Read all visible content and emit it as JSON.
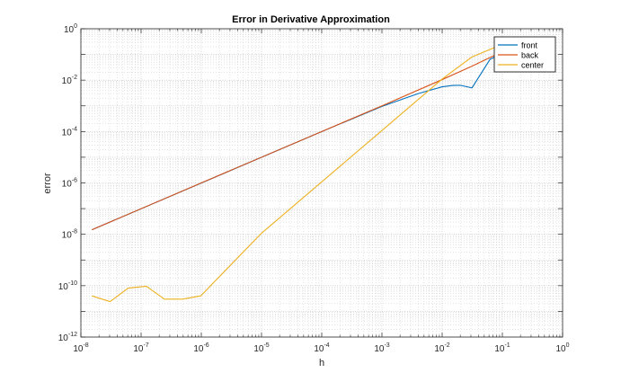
{
  "chart_data": {
    "type": "line",
    "title": "Error in Derivative Approximation",
    "xlabel": "h",
    "ylabel": "error",
    "xscale": "log",
    "yscale": "log",
    "xlim": [
      1e-08,
      1
    ],
    "ylim": [
      1e-12,
      1
    ],
    "grid": true,
    "minor_grid": true,
    "legend_position": "top-right",
    "x_ticks": [
      {
        "value": 1e-08,
        "base": "10",
        "exp": "-8"
      },
      {
        "value": 1e-07,
        "base": "10",
        "exp": "-7"
      },
      {
        "value": 1e-06,
        "base": "10",
        "exp": "-6"
      },
      {
        "value": 1e-05,
        "base": "10",
        "exp": "-5"
      },
      {
        "value": 0.0001,
        "base": "10",
        "exp": "-4"
      },
      {
        "value": 0.001,
        "base": "10",
        "exp": "-3"
      },
      {
        "value": 0.01,
        "base": "10",
        "exp": "-2"
      },
      {
        "value": 0.1,
        "base": "10",
        "exp": "-1"
      },
      {
        "value": 1,
        "base": "10",
        "exp": "0"
      }
    ],
    "y_ticks": [
      {
        "value": 1e-12,
        "base": "10",
        "exp": "-12"
      },
      {
        "value": 1e-10,
        "base": "10",
        "exp": "-10"
      },
      {
        "value": 1e-08,
        "base": "10",
        "exp": "-8"
      },
      {
        "value": 1e-06,
        "base": "10",
        "exp": "-6"
      },
      {
        "value": 0.0001,
        "base": "10",
        "exp": "-4"
      },
      {
        "value": 0.01,
        "base": "10",
        "exp": "-2"
      },
      {
        "value": 1,
        "base": "10",
        "exp": "0"
      }
    ],
    "series": [
      {
        "name": "front",
        "color": "#0072BD",
        "x": [
          1.526e-08,
          0.0001,
          0.001,
          0.004,
          0.01,
          0.015,
          0.02,
          0.03125,
          0.0625,
          0.1
        ],
        "y": [
          1.5e-08,
          0.0001,
          0.00095,
          0.003,
          0.0055,
          0.0062,
          0.0063,
          0.005,
          0.065,
          0.11
        ]
      },
      {
        "name": "back",
        "color": "#D95319",
        "x": [
          1.526e-08,
          1e-06,
          0.0001,
          0.001,
          0.01,
          0.03125,
          0.1
        ],
        "y": [
          1.5e-08,
          1e-06,
          0.0001,
          0.001,
          0.0105,
          0.035,
          0.13
        ]
      },
      {
        "name": "center",
        "color": "#EDB120",
        "x": [
          1.526e-08,
          3.05e-08,
          6.1e-08,
          1.22e-07,
          2.44e-07,
          4.88e-07,
          9.77e-07,
          1e-05,
          0.0001,
          0.001,
          0.01,
          0.03125,
          0.1
        ],
        "y": [
          4e-11,
          2.4e-11,
          8e-11,
          9.5e-11,
          3e-11,
          3e-11,
          4e-11,
          1.1e-08,
          1.1e-06,
          0.00011,
          0.011,
          0.08,
          0.25
        ]
      }
    ]
  }
}
